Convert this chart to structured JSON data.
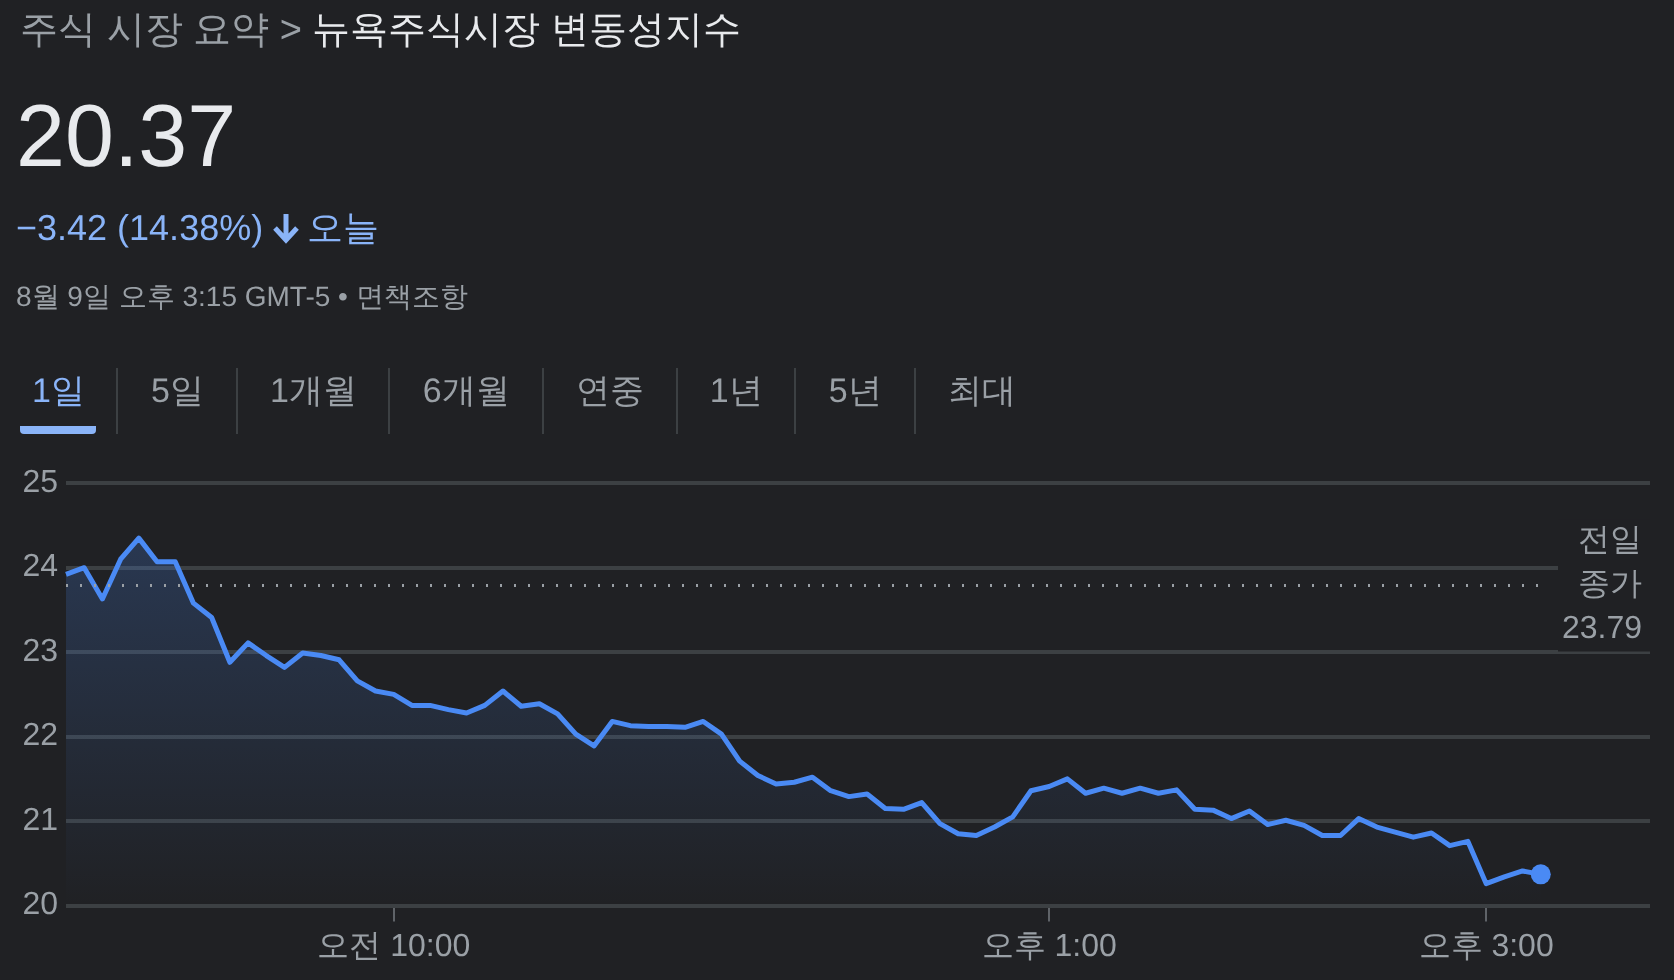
{
  "chart_data": {
    "type": "area",
    "title": "뉴욕주식시장 변동성지수",
    "annotations": [
      "주식 시장 요약 >",
      "20.37",
      "−3.42 (14.38%)",
      "오늘",
      "8월 9일 오후 3:15 GMT-5 • 면책조항",
      "1일",
      "5일",
      "1개월",
      "6개월",
      "연중",
      "1년",
      "5년",
      "최대"
    ],
    "categories": [
      null,
      null,
      null,
      null,
      null,
      null,
      null,
      null,
      null,
      null,
      null,
      null,
      null,
      null,
      null,
      null,
      null,
      null,
      "오전 10:00",
      null,
      null,
      null,
      null,
      null,
      null,
      null,
      null,
      null,
      null,
      null,
      null,
      null,
      null,
      null,
      null,
      null,
      null,
      null,
      null,
      null,
      null,
      null,
      null,
      null,
      null,
      null,
      null,
      null,
      null,
      null,
      null,
      null,
      null,
      null,
      "오후 1:00",
      null,
      null,
      null,
      null,
      null,
      null,
      null,
      null,
      null,
      null,
      null,
      null,
      null,
      null,
      null,
      null,
      null,
      null,
      null,
      null,
      null,
      null,
      null,
      "오후 3:00",
      null,
      null,
      null,
      null,
      null,
      null,
      null,
      null,
      null
    ],
    "series": [
      {
        "color": "#4a8af4",
        "values": [
          23.92,
          24.0,
          23.63,
          24.1,
          24.35,
          24.07,
          24.07,
          23.58,
          23.41,
          22.88,
          23.11,
          22.96,
          22.82,
          22.99,
          22.96,
          22.91,
          22.66,
          22.54,
          22.5,
          22.37,
          22.37,
          22.32,
          22.28,
          22.37,
          22.54,
          22.36,
          22.39,
          22.27,
          22.03,
          21.89,
          22.18,
          22.13,
          22.12,
          22.12,
          22.11,
          22.18,
          22.03,
          21.71,
          21.54,
          21.44,
          21.46,
          21.52,
          21.36,
          21.29,
          21.32,
          21.15,
          21.14,
          21.22,
          20.97,
          20.85,
          20.83,
          20.93,
          21.05,
          21.36,
          21.41,
          21.5,
          21.33,
          21.39,
          21.33,
          21.39,
          21.33,
          21.37,
          21.14,
          21.13,
          21.03,
          21.12,
          20.96,
          21.01,
          20.95,
          20.83,
          20.83,
          21.03,
          20.93,
          20.87,
          20.81,
          20.86,
          20.71,
          20.76,
          20.26,
          20.34,
          20.41,
          20.37,
          null,
          null,
          null,
          null,
          null,
          null
        ]
      }
    ],
    "ylim": [
      20,
      25
    ],
    "yticks": [
      20,
      21,
      22,
      23,
      24,
      25
    ],
    "grid": "y",
    "ref_lines": [
      {
        "axis": "y",
        "value": 23.79,
        "label": "전일 종가 23.79",
        "line_style": "dotted",
        "color": "#9aa0a6"
      }
    ]
  }
}
